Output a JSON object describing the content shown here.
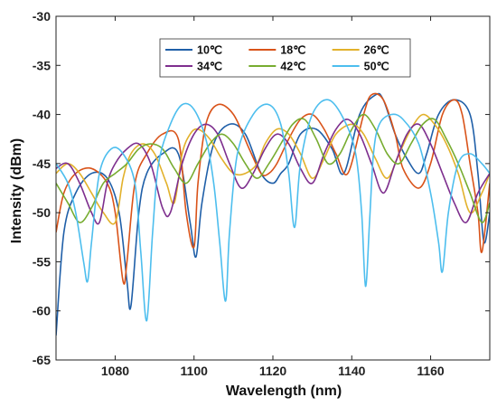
{
  "chart_data": {
    "type": "line",
    "title": "",
    "xlabel": "Wavelength (nm)",
    "ylabel": "Intensity (dBm)",
    "xlim": [
      1065,
      1175
    ],
    "ylim": [
      -65,
      -30
    ],
    "xticks": [
      1080,
      1100,
      1120,
      1140,
      1160
    ],
    "yticks": [
      -30,
      -35,
      -40,
      -45,
      -50,
      -55,
      -60,
      -65
    ],
    "grid": false,
    "legend_position": "top-center",
    "legend_columns": 3,
    "series": [
      {
        "name": "10℃",
        "color": "#1f5fa8",
        "x": [
          1065,
          1067,
          1070,
          1074,
          1078,
          1081,
          1083,
          1084,
          1086,
          1088,
          1092,
          1096,
          1099,
          1100.5,
          1102,
          1105,
          1109,
          1113,
          1117,
          1120,
          1122,
          1124,
          1127,
          1131,
          1135,
          1138,
          1142,
          1146,
          1148,
          1151,
          1154,
          1157,
          1159,
          1162,
          1166,
          1170,
          1172,
          1173.5,
          1175
        ],
        "y": [
          -62.5,
          -52,
          -48,
          -46,
          -46.5,
          -50,
          -57,
          -59.5,
          -50,
          -46,
          -44,
          -44,
          -51,
          -54.5,
          -49,
          -43,
          -41,
          -42,
          -46,
          -47,
          -46,
          -45,
          -42,
          -41.5,
          -43.5,
          -46,
          -40,
          -38,
          -38.5,
          -42,
          -44.5,
          -46,
          -44,
          -40,
          -38.5,
          -40,
          -46,
          -53,
          -50
        ]
      },
      {
        "name": "18℃",
        "color": "#d95319",
        "x": [
          1065,
          1067,
          1070,
          1074,
          1078,
          1080,
          1082,
          1083,
          1085,
          1088,
          1092,
          1096,
          1098,
          1100,
          1101,
          1103,
          1106,
          1110,
          1114,
          1117,
          1119,
          1121,
          1124,
          1127,
          1130,
          1133,
          1136,
          1139,
          1143,
          1145,
          1148,
          1151,
          1153,
          1157,
          1160,
          1163,
          1166,
          1168,
          1170,
          1172,
          1173,
          1175
        ],
        "y": [
          -52,
          -48,
          -46,
          -45.5,
          -47,
          -50,
          -57,
          -55,
          -47,
          -44,
          -42,
          -42.5,
          -50,
          -53.5,
          -47,
          -41,
          -39,
          -40,
          -43.5,
          -46,
          -46,
          -45,
          -42.5,
          -40.5,
          -40,
          -41.5,
          -44,
          -46,
          -40,
          -38,
          -38.5,
          -42,
          -45.5,
          -47.5,
          -45,
          -40,
          -38.5,
          -40,
          -45,
          -50,
          -54,
          -47
        ]
      },
      {
        "name": "26℃",
        "color": "#e2b12b",
        "x": [
          1065,
          1068,
          1071,
          1074,
          1077,
          1080,
          1082,
          1084,
          1087,
          1090,
          1093,
          1095,
          1097,
          1099,
          1101,
          1104,
          1107,
          1110,
          1113,
          1116,
          1118,
          1121,
          1124,
          1127,
          1130,
          1133,
          1136,
          1140,
          1143,
          1146,
          1149,
          1152,
          1155,
          1158,
          1161,
          1164,
          1167,
          1170,
          1173,
          1175
        ],
        "y": [
          -46,
          -45,
          -46,
          -48,
          -50,
          -51,
          -46.5,
          -44,
          -43,
          -44,
          -47,
          -49,
          -44,
          -42,
          -41.5,
          -42.5,
          -44.5,
          -46,
          -46,
          -45,
          -43,
          -41.5,
          -42,
          -44,
          -46.5,
          -44.5,
          -42,
          -41,
          -42,
          -44.5,
          -46.5,
          -44,
          -41.5,
          -40,
          -41,
          -43,
          -46,
          -50,
          -48,
          -46
        ]
      },
      {
        "name": "34℃",
        "color": "#7e2f8e",
        "x": [
          1065,
          1068,
          1071,
          1074,
          1076,
          1078,
          1080,
          1083,
          1086,
          1089,
          1092,
          1094,
          1097,
          1100,
          1103,
          1106,
          1109,
          1112,
          1115,
          1118,
          1121,
          1124,
          1127,
          1130,
          1133,
          1136,
          1139,
          1142,
          1145,
          1148,
          1151,
          1154,
          1157,
          1160,
          1163,
          1166,
          1169,
          1172,
          1175
        ],
        "y": [
          -45.5,
          -45,
          -47,
          -50,
          -51,
          -47,
          -45,
          -43.5,
          -43,
          -45,
          -49.5,
          -50,
          -45,
          -42,
          -41,
          -42,
          -45,
          -47.5,
          -46,
          -43.5,
          -42,
          -43,
          -45.5,
          -47,
          -44,
          -41.5,
          -40.5,
          -42,
          -45,
          -48,
          -45,
          -42,
          -41,
          -43,
          -46,
          -49,
          -51,
          -48,
          -46
        ]
      },
      {
        "name": "42℃",
        "color": "#77ac30",
        "x": [
          1065,
          1068,
          1071,
          1074,
          1077,
          1080,
          1083,
          1086,
          1089,
          1092,
          1095,
          1098,
          1101,
          1104,
          1107,
          1110,
          1113,
          1116,
          1119,
          1122,
          1125,
          1128,
          1131,
          1134,
          1137,
          1140,
          1143,
          1146,
          1149,
          1152,
          1155,
          1158,
          1161,
          1164,
          1167,
          1170,
          1173,
          1175
        ],
        "y": [
          -47,
          -49,
          -51,
          -49.5,
          -47,
          -46,
          -45,
          -43.5,
          -43,
          -43.5,
          -45.5,
          -47,
          -45,
          -43,
          -42,
          -43,
          -45,
          -46.5,
          -45,
          -43,
          -41,
          -40.5,
          -42.5,
          -45,
          -44,
          -41.5,
          -40,
          -41.5,
          -44,
          -45,
          -43,
          -41,
          -40.5,
          -42.5,
          -45,
          -48,
          -51,
          -49
        ]
      },
      {
        "name": "50℃",
        "color": "#4dbeee",
        "x": [
          1065,
          1068,
          1070,
          1072,
          1073,
          1074,
          1076,
          1079,
          1082,
          1085,
          1086.5,
          1088,
          1089.5,
          1091,
          1094,
          1097,
          1100,
          1103,
          1105,
          1106.5,
          1108,
          1109,
          1111,
          1115,
          1119,
          1122,
          1124,
          1125.5,
          1127,
          1130,
          1134,
          1138,
          1141,
          1142.5,
          1143.5,
          1144.5,
          1145.5,
          1147,
          1150,
          1153,
          1157,
          1160,
          1162,
          1163,
          1164.5,
          1167,
          1170,
          1173,
          1175
        ],
        "y": [
          -45,
          -47,
          -50,
          -55,
          -57,
          -53,
          -46,
          -43.5,
          -44,
          -47,
          -54,
          -61,
          -52,
          -45,
          -41,
          -39,
          -39.5,
          -42.5,
          -47,
          -53,
          -59,
          -52,
          -44,
          -40,
          -39,
          -41,
          -46,
          -51.5,
          -45,
          -40,
          -38.5,
          -40.5,
          -44,
          -50,
          -57.5,
          -51,
          -44,
          -41,
          -40,
          -40.5,
          -43,
          -48,
          -53,
          -56,
          -50,
          -45,
          -44,
          -45,
          -46
        ]
      }
    ]
  }
}
